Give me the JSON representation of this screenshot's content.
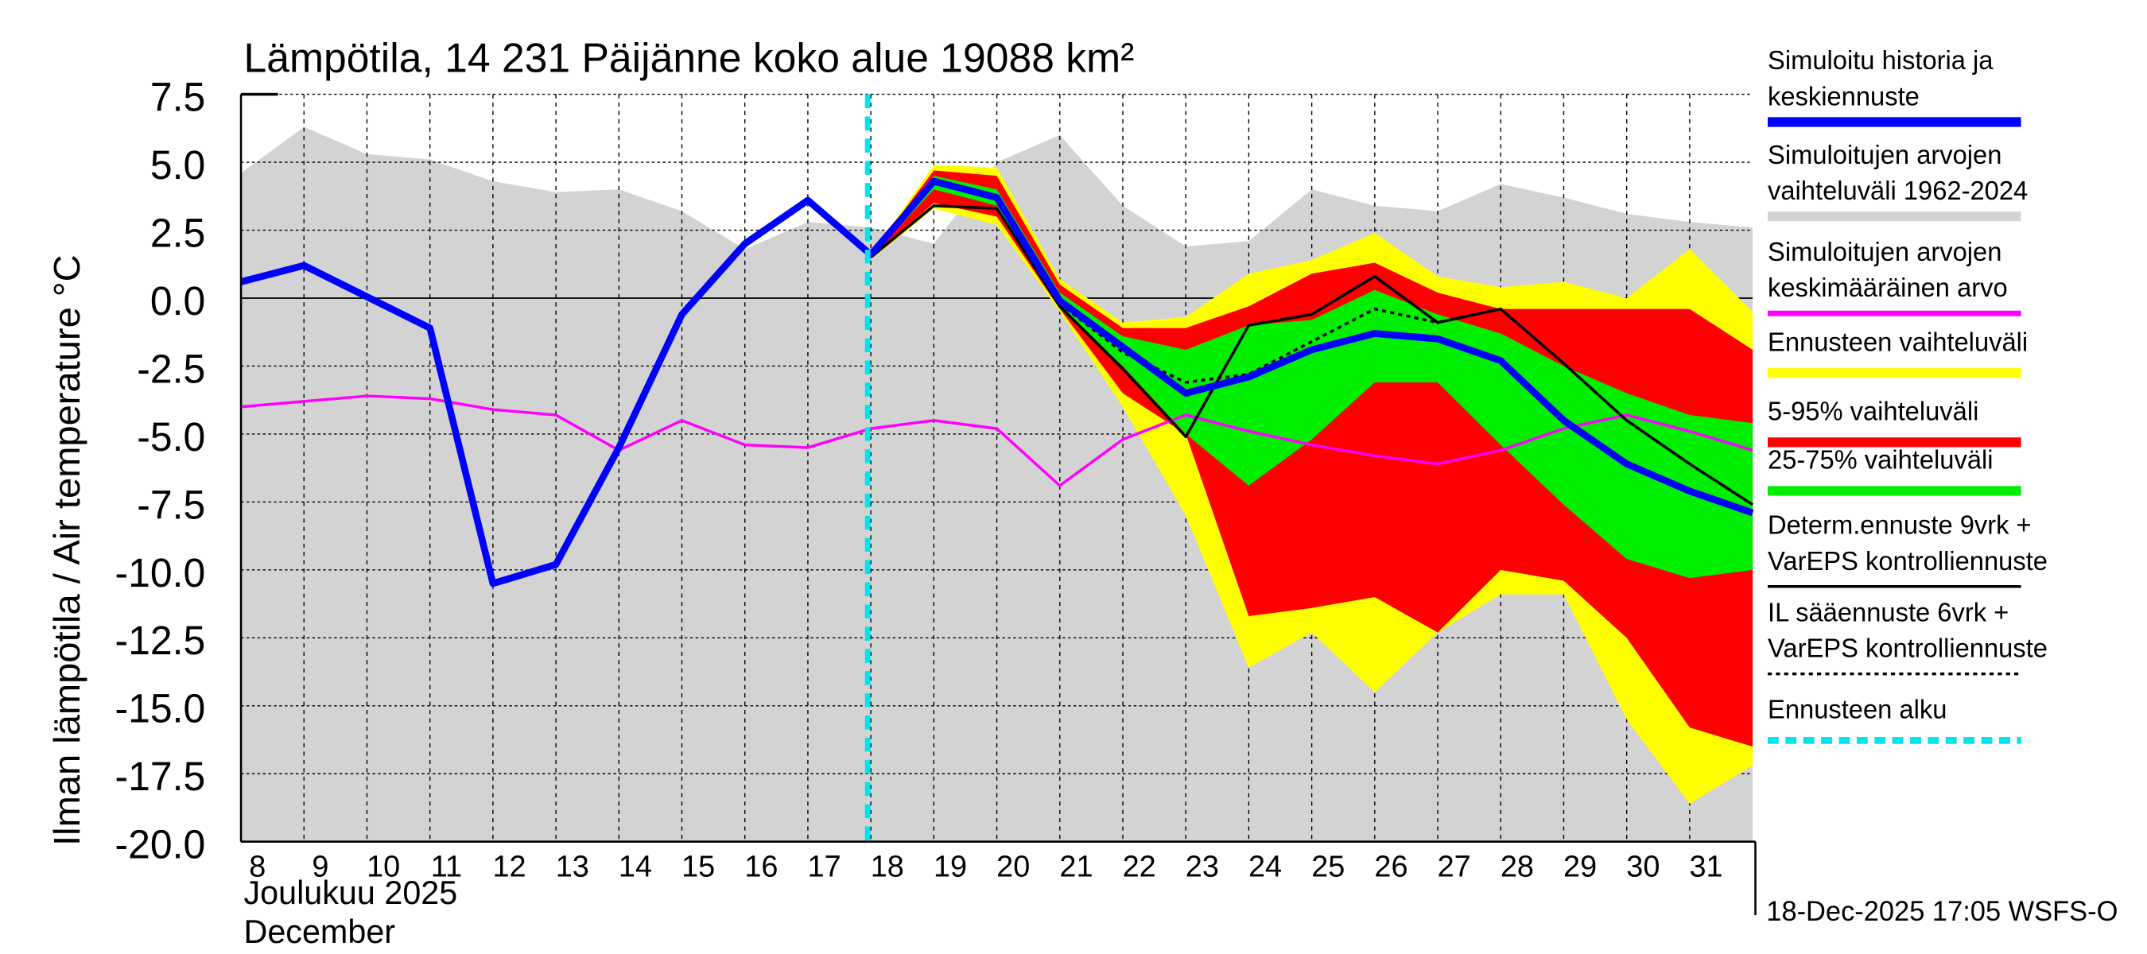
{
  "chart_data": {
    "type": "area",
    "title": "Lämpötila, 14 231 Päijänne koko alue 19088 km²",
    "ylabel": "Ilman lämpötila / Air temperature   °C",
    "xlabel_line1": "Joulukuu  2025",
    "xlabel_line2": "December",
    "footer": "18-Dec-2025 17:05 WSFS-O",
    "ylim": [
      -20,
      7.5
    ],
    "yticks": [
      "7.5",
      "5.0",
      "2.5",
      "0.0",
      "-2.5",
      "-5.0",
      "-7.5",
      "-10.0",
      "-12.5",
      "-15.0",
      "-17.5",
      "-20.0"
    ],
    "ytick_values": [
      7.5,
      5,
      2.5,
      0,
      -2.5,
      -5,
      -7.5,
      -10,
      -12.5,
      -15,
      -17.5,
      -20
    ],
    "xlim": [
      8,
      32
    ],
    "xtick_labels": [
      "8",
      "9",
      "10",
      "11",
      "12",
      "13",
      "14",
      "15",
      "16",
      "17",
      "18",
      "19",
      "20",
      "21",
      "22",
      "23",
      "24",
      "25",
      "26",
      "27",
      "28",
      "29",
      "30",
      "31"
    ],
    "forecast_start_day": 17.95,
    "days": [
      8,
      9,
      10,
      11,
      12,
      13,
      14,
      15,
      16,
      17,
      18,
      19,
      20,
      21,
      22,
      23,
      24,
      25,
      26,
      27,
      28,
      29,
      30,
      31,
      32
    ],
    "series": {
      "hist_range_upper": [
        4.6,
        6.3,
        5.3,
        5.1,
        4.3,
        3.9,
        4.0,
        3.2,
        1.8,
        2.8,
        2.6,
        2.0,
        5.0,
        6.0,
        3.4,
        1.9,
        2.1,
        4.0,
        3.4,
        3.2,
        4.2,
        3.7,
        3.1,
        2.8,
        2.6
      ],
      "hist_range_lower": [
        -20,
        -20,
        -20,
        -20,
        -20,
        -20,
        -20,
        -20,
        -20,
        -20,
        -20,
        -20,
        -20,
        -20,
        -20,
        -20,
        -20,
        -20,
        -20,
        -20,
        -20,
        -20,
        -20,
        -20,
        -20
      ],
      "mean": [
        -4.0,
        -3.8,
        -3.6,
        -3.7,
        -4.1,
        -4.3,
        -5.6,
        -4.5,
        -5.4,
        -5.5,
        -4.8,
        -4.5,
        -4.8,
        -6.9,
        -5.2,
        -4.3,
        -4.9,
        -5.4,
        -5.8,
        -6.1,
        -5.6,
        -4.8,
        -4.3,
        -4.9,
        -5.6
      ],
      "simulated": [
        0.6,
        1.2,
        0.05,
        -1.1,
        -10.5,
        -9.8,
        -5.5,
        -0.6,
        2.0,
        3.6,
        1.6,
        4.3,
        3.7,
        -0.1,
        -1.8,
        -3.5,
        -2.9,
        -1.9,
        -1.3,
        -1.5,
        -2.3,
        -4.5,
        -6.1,
        -7.1,
        -7.9
      ]
    },
    "forecast_days": [
      18,
      19,
      20,
      21,
      22,
      23,
      24,
      25,
      26,
      27,
      28,
      29,
      30,
      31,
      32
    ],
    "forecast": {
      "range_max": [
        1.6,
        4.9,
        4.8,
        0.7,
        -0.9,
        -0.7,
        0.9,
        1.4,
        2.4,
        0.8,
        0.4,
        0.6,
        0.0,
        1.8,
        -0.5
      ],
      "range_min": [
        1.4,
        3.3,
        2.7,
        -0.5,
        -4.0,
        -8.0,
        -13.6,
        -12.3,
        -14.5,
        -12.3,
        -10.9,
        -10.9,
        -15.5,
        -18.6,
        -17.2
      ],
      "p95": [
        1.6,
        4.7,
        4.5,
        0.5,
        -1.1,
        -1.1,
        -0.3,
        0.9,
        1.3,
        0.2,
        -0.4,
        -0.4,
        -0.4,
        -0.4,
        -1.9
      ],
      "p5": [
        1.5,
        3.5,
        3.0,
        -0.4,
        -3.5,
        -5.0,
        -11.7,
        -11.4,
        -11.0,
        -12.3,
        -10.0,
        -10.4,
        -12.5,
        -15.8,
        -16.5
      ],
      "p75": [
        1.6,
        4.5,
        4.0,
        0.2,
        -1.4,
        -1.9,
        -1.0,
        -0.8,
        0.3,
        -0.6,
        -1.3,
        -2.5,
        -3.5,
        -4.3,
        -4.6
      ],
      "p25": [
        1.5,
        4.0,
        3.4,
        -0.4,
        -2.5,
        -5.0,
        -6.9,
        -5.2,
        -3.1,
        -3.1,
        -5.4,
        -7.6,
        -9.6,
        -10.3,
        -10.0
      ],
      "determ": [
        1.5,
        3.4,
        3.3,
        -0.3,
        -2.6,
        -5.1,
        -1.0,
        -0.6,
        0.8,
        -0.9,
        -0.4,
        -2.4,
        -4.5,
        -6.1,
        -7.6
      ],
      "il_days": [
        21,
        22,
        23,
        24,
        25,
        26,
        27
      ],
      "il": [
        -0.2,
        -2.0,
        -3.1,
        -2.8,
        -1.6,
        -0.4,
        -0.9
      ]
    },
    "legend": [
      {
        "line1": "Simuloitu historia ja",
        "line2": "keskiennuste",
        "color": "#0000ff",
        "style": "thick"
      },
      {
        "line1": "Simuloitujen arvojen",
        "line2": "vaihteluväli 1962-2024",
        "color": "#d3d3d3",
        "style": "thick"
      },
      {
        "line1": "Simuloitujen arvojen",
        "line2": "keskimääräinen arvo",
        "color": "#ff00ff",
        "style": "medium"
      },
      {
        "line1": "Ennusteen vaihteluväli",
        "line2": "",
        "color": "#ffff00",
        "style": "thick"
      },
      {
        "line1": "5-95% vaihteluväli",
        "line2": "",
        "color": "#ff0000",
        "style": "thick"
      },
      {
        "line1": "25-75% vaihteluväli",
        "line2": "",
        "color": "#00ee00",
        "style": "thick"
      },
      {
        "line1": "Determ.ennuste 9vrk +",
        "line2": "VarEPS kontrolliennuste",
        "color": "#000000",
        "style": "thin"
      },
      {
        "line1": "IL sääennuste 6vrk  +",
        "line2": "VarEPS kontrolliennuste",
        "color": "#000000",
        "style": "dotted"
      },
      {
        "line1": "Ennusteen alku",
        "line2": "",
        "color": "#00e5ee",
        "style": "dashed"
      }
    ]
  }
}
